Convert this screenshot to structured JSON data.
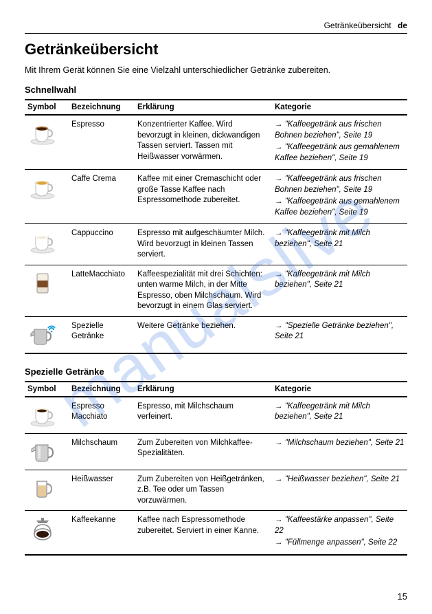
{
  "header": {
    "section": "Getränkeübersicht",
    "lang": "de"
  },
  "title": "Getränkeübersicht",
  "intro": "Mit Ihrem Gerät können Sie eine Vielzahl unterschiedlicher Getränke zubereiten.",
  "page_number": "15",
  "watermark": "manualslive",
  "columns": {
    "symbol": "Symbol",
    "name": "Bezeichnung",
    "expl": "Erklärung",
    "cat": "Kategorie"
  },
  "table1": {
    "heading": "Schnellwahl",
    "rows": [
      {
        "icon": "espresso",
        "name": "Espresso",
        "expl": "Konzentrierter Kaffee. Wird bevorzugt in kleinen, dickwandigen Tassen serviert. Tassen mit Heißwasser vorwärmen.",
        "refs": [
          "\"Kaffeegetränk aus frischen Bohnen beziehen\", Seite 19",
          "\"Kaffeegetränk aus gemahlenem Kaffee beziehen\", Seite 19"
        ]
      },
      {
        "icon": "crema",
        "name": "Caffe Crema",
        "expl": "Kaffee mit einer Cremaschicht oder große Tasse Kaffee nach Espressomethode zubereitet.",
        "refs": [
          "\"Kaffeegetränk aus frischen Bohnen beziehen\", Seite 19",
          "\"Kaffeegetränk aus gemahlenem Kaffee beziehen\", Seite 19"
        ]
      },
      {
        "icon": "cappuccino",
        "name": "Cappuccino",
        "expl": "Espresso mit aufgeschäumter Milch. Wird bevorzugt in kleinen Tassen serviert.",
        "refs": [
          "\"Kaffeegetränk mit Milch beziehen\", Seite 21"
        ]
      },
      {
        "icon": "latte",
        "name": "LatteMacchiato",
        "expl": "Kaffeespezialität mit drei Schichten: unten warme Milch, in der Mitte Espresso, oben Milchschaum. Wird bevorzugt in einem Glas serviert.",
        "refs": [
          "\"Kaffeegetränk mit Milch beziehen\", Seite 21"
        ]
      },
      {
        "icon": "special",
        "name": "Spezielle Getränke",
        "expl": "Weitere Getränke beziehen.",
        "refs": [
          "\"Spezielle Getränke beziehen\", Seite 21"
        ]
      }
    ]
  },
  "table2": {
    "heading": "Spezielle Getränke",
    "rows": [
      {
        "icon": "espmacch",
        "name": "Espresso Macchiato",
        "expl": "Espresso, mit Milchschaum verfeinert.",
        "refs": [
          "\"Kaffeegetränk mit Milch beziehen\", Seite 21"
        ]
      },
      {
        "icon": "milchschaum",
        "name": "Milchschaum",
        "expl": "Zum Zubereiten von Milchkaffee-Spezialitäten.",
        "refs": [
          "\"Milchschaum beziehen\", Seite 21"
        ]
      },
      {
        "icon": "heisswasser",
        "name": "Heißwasser",
        "expl": "Zum Zubereiten von Heißgetränken, z.B. Tee oder um Tassen vorzuwärmen.",
        "refs": [
          "\"Heißwasser beziehen\", Seite 21"
        ]
      },
      {
        "icon": "kanne",
        "name": "Kaffeekanne",
        "expl": "Kaffee nach Espressomethode zubereitet. Serviert in einer Kanne.",
        "refs": [
          "\"Kaffeestärke anpassen\", Seite 22",
          "\"Füllmenge anpassen\", Seite 22"
        ]
      }
    ]
  },
  "icons": {
    "espresso": {
      "cup": "#ffffff",
      "saucer": "#e8e8e8",
      "fill": "#3b1e0a",
      "foam": "#a56b2e"
    },
    "crema": {
      "cup": "#ffffff",
      "saucer": "#e8e8e8",
      "fill": "#d9a441",
      "foam": "#f2d38b"
    },
    "cappuccino": {
      "cup": "#ffffff",
      "saucer": "#e8e8e8",
      "fill": "#f4e9d8",
      "foam": "#ffffff"
    },
    "latte": {
      "glass": "#e9e2d5",
      "mid": "#7a4a23",
      "top": "#f6f0e4"
    },
    "special": {
      "pot": "#c9c9c9",
      "wifi": "#1ea0e6"
    },
    "espmacch": {
      "cup": "#ffffff",
      "saucer": "#e8e8e8",
      "fill": "#3b1e0a",
      "foam": "#f2ead8"
    },
    "milchschaum": {
      "pot": "#cfcfcf",
      "shine": "#f2f2f2"
    },
    "heisswasser": {
      "glass": "#d9b58a",
      "water": "#e8c99a"
    },
    "kanne": {
      "pot": "#dcdcdc",
      "coffee": "#2e1708",
      "top": "#888"
    }
  }
}
